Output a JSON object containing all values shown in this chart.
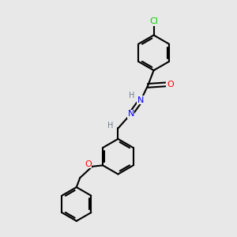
{
  "bg_color": "#e8e8e8",
  "atom_colors": {
    "C": "#000000",
    "H": "#708090",
    "N": "#0000ff",
    "O": "#ff0000",
    "Cl": "#00cc00"
  },
  "bond_color": "#000000",
  "bond_width": 1.5,
  "dbl_sep": 0.08,
  "font_size_atom": 8,
  "font_size_small": 7
}
